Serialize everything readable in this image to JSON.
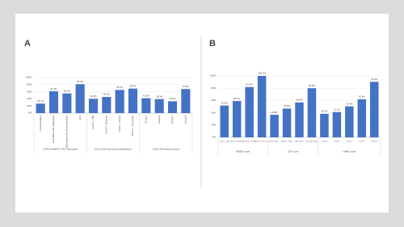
{
  "chart_data": [
    {
      "type": "bar",
      "panel": "A",
      "color": "#4472c4",
      "ylim": [
        0,
        100
      ],
      "yticks": [
        {
          "value": 0,
          "label": "0%"
        },
        {
          "value": 20,
          "label": "20%"
        },
        {
          "value": 40,
          "label": "40%"
        },
        {
          "value": 60,
          "label": "60%"
        },
        {
          "value": 80,
          "label": "80%"
        },
        {
          "value": 100,
          "label": "100%"
        }
      ],
      "groups": [
        {
          "label": "COPD GesEPOC 2017 phenotype",
          "categories": [
            "Non-exacerbator",
            "Exacerbator with emphysema",
            "Exacerbator with chronic bronchitis",
            "ACO"
          ],
          "values": [
            26.7,
            61.3,
            55.3,
            81.3
          ],
          "value_labels": [
            "26.7%",
            "61.3%",
            "55.3%",
            "81.3%"
          ]
        },
        {
          "label": "GOLD 2019 spirometric classification",
          "categories": [
            "GOLD 1 - Mild",
            "GOLD 2 - Moderate",
            "GOLD 3 - Severe",
            "GOLD 4 - Very severe"
          ],
          "values": [
            40.2,
            45.5,
            65.1,
            68.9
          ],
          "value_labels": [
            "40.2%",
            "45.5%",
            "65.1%",
            "68.9%"
          ]
        },
        {
          "label": "GOLD 2019 patient groups",
          "categories": [
            "Group A",
            "Group B",
            "Group C",
            "Group D"
          ],
          "values": [
            41.9,
            39.3,
            33.3,
            67.6
          ],
          "value_labels": [
            "41.9%",
            "39.3%",
            "33.3%",
            "67.6%"
          ]
        }
      ]
    },
    {
      "type": "bar",
      "panel": "B",
      "color": "#4472c4",
      "ylim": [
        0,
        100
      ],
      "yticks": [
        {
          "value": 0,
          "label": "0%"
        },
        {
          "value": 20,
          "label": "20%"
        },
        {
          "value": 40,
          "label": "40%"
        },
        {
          "value": 60,
          "label": "60%"
        },
        {
          "value": 80,
          "label": "80%"
        },
        {
          "value": 100,
          "label": "100%"
        }
      ],
      "groups": [
        {
          "label": "BODEx scale",
          "categories": [
            "Class I - Mild",
            "Class II - Moderate",
            "Class III - Severe",
            "Class IV - Very severe"
          ],
          "values": [
            51.8,
            59.1,
            81.9,
            100.0
          ],
          "value_labels": [
            "51.8%",
            "59.1%",
            "81.9%",
            "100.0%"
          ]
        },
        {
          "label": "CAT score",
          "categories": [
            "Low impact",
            "Medium impact",
            "High impact",
            "Very high impact"
          ],
          "values": [
            36.8,
            46.8,
            56.8,
            80.0
          ],
          "value_labels": [
            "36.8%",
            "46.8%",
            "56.8%",
            "80.0%"
          ]
        },
        {
          "label": "mMRC scale",
          "categories": [
            "Grade 0",
            "Grade 1",
            "Grade 2",
            "Grade 3",
            "Grade 4"
          ],
          "values": [
            38.3,
            41.2,
            50.4,
            61.9,
            90.4
          ],
          "value_labels": [
            "38.3%",
            "41.2%",
            "50.4%",
            "61.9%",
            "90.4%"
          ]
        }
      ]
    }
  ]
}
